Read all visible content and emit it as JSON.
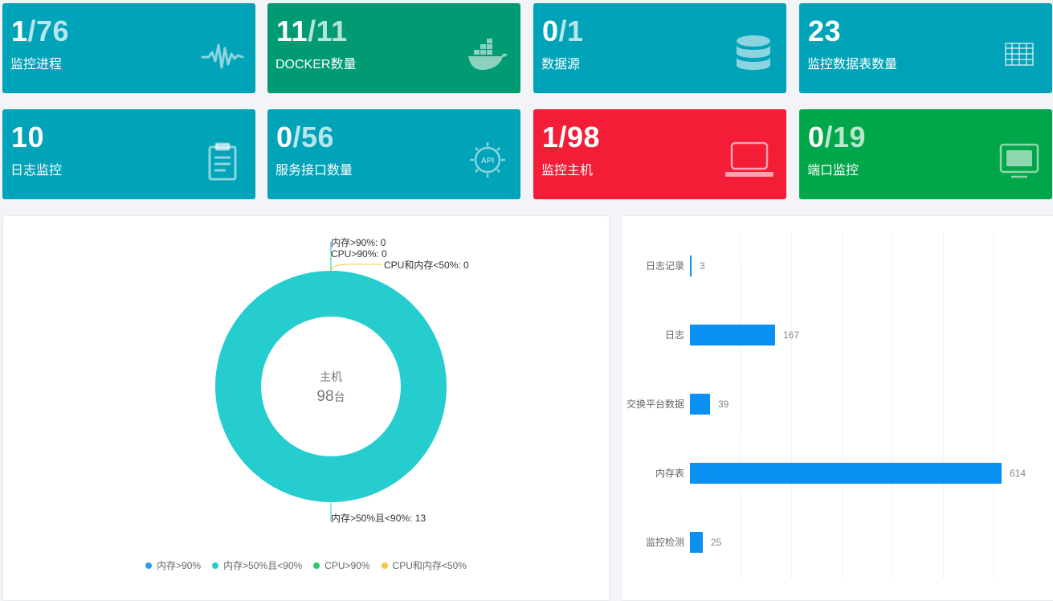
{
  "colors": {
    "teal": "#00a3b8",
    "green_dark": "#009b72",
    "red": "#f41d37",
    "green": "#00a74a",
    "bar_blue": "#0a8ff2",
    "donut_cyan": "#26cdcf"
  },
  "cards": [
    {
      "value_main": "1",
      "value_rest": "/76",
      "label": "监控进程",
      "icon": "pulse-icon"
    },
    {
      "value_main": "11",
      "value_rest": "/11",
      "label": "DOCKER数量",
      "icon": "docker-icon"
    },
    {
      "value_main": "0",
      "value_rest": "/1",
      "label": "数据源",
      "icon": "database-icon"
    },
    {
      "value_main": "23",
      "value_rest": "",
      "label": "监控数据表数量",
      "icon": "table-icon"
    },
    {
      "value_main": "10",
      "value_rest": "",
      "label": "日志监控",
      "icon": "clipboard-icon"
    },
    {
      "value_main": "0",
      "value_rest": "/56",
      "label": "服务接口数量",
      "icon": "api-icon"
    },
    {
      "value_main": "1",
      "value_rest": "/98",
      "label": "监控主机",
      "icon": "laptop-icon"
    },
    {
      "value_main": "0",
      "value_rest": "/19",
      "label": "端口监控",
      "icon": "monitor-icon"
    }
  ],
  "donut": {
    "center_title": "主机",
    "center_value": "98",
    "center_unit": "台",
    "labels": {
      "mem_high": "内存>90%: 0",
      "cpu_high": "CPU>90%: 0",
      "cpu_mem_low": "CPU和内存<50%: 0",
      "mem_mid": "内存>50%且<90%: 13"
    },
    "legend": [
      {
        "name": "内存>90%",
        "color": "#2a9cf0"
      },
      {
        "name": "内存>50%且<90%",
        "color": "#26cdcf"
      },
      {
        "name": "CPU>90%",
        "color": "#2cc46f"
      },
      {
        "name": "CPU和内存<50%",
        "color": "#f7c93a"
      }
    ]
  },
  "chart_data": {
    "type": "bar",
    "orientation": "horizontal",
    "categories": [
      "日志记录",
      "日志",
      "交换平台数据",
      "内存表",
      "监控检测"
    ],
    "values": [
      3,
      167,
      39,
      614,
      25
    ],
    "xlim": [
      0,
      650
    ],
    "title": "",
    "xlabel": "",
    "ylabel": ""
  }
}
